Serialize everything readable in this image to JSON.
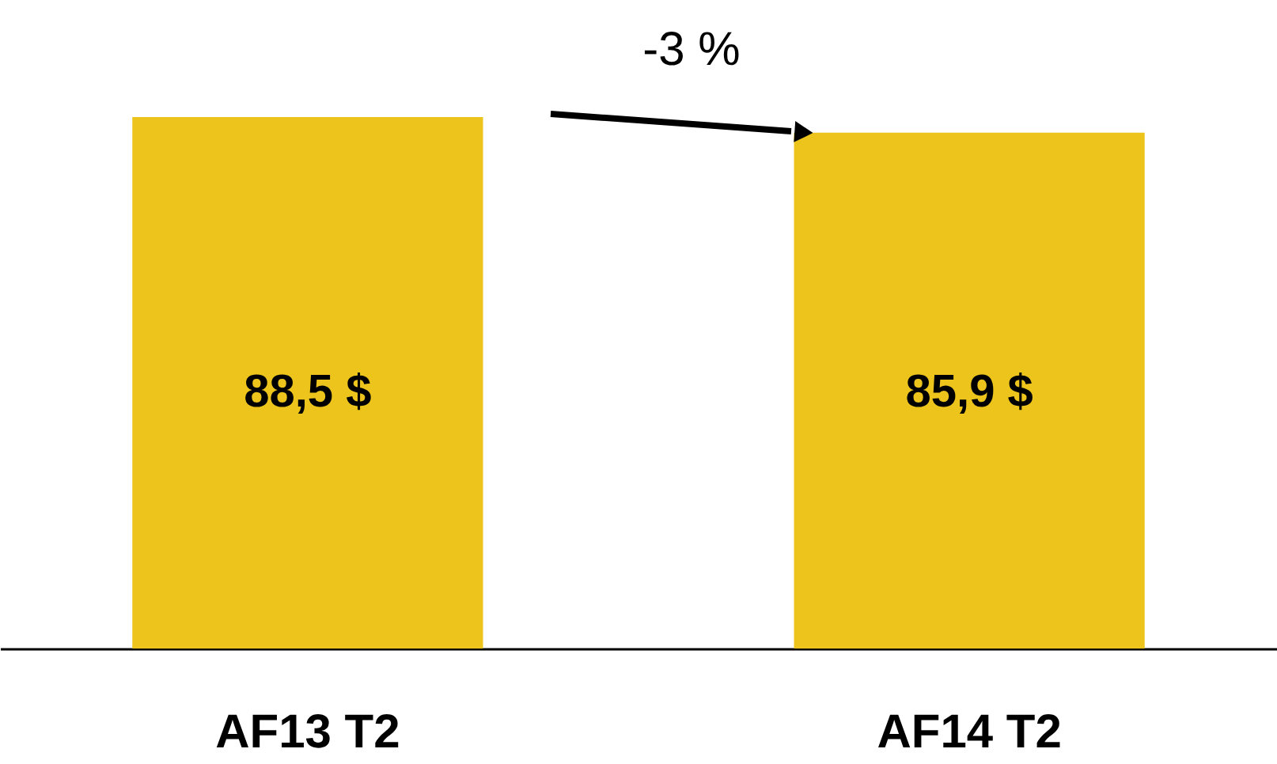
{
  "chart_data": {
    "type": "bar",
    "categories": [
      "AF13 T2",
      "AF14 T2"
    ],
    "values": [
      88.5,
      85.9
    ],
    "color": "#ecc41b",
    "value_labels": [
      "88,5 $",
      "85,9 $"
    ],
    "ylim": [
      0,
      108
    ],
    "annotations": [
      "-3 %"
    ]
  }
}
